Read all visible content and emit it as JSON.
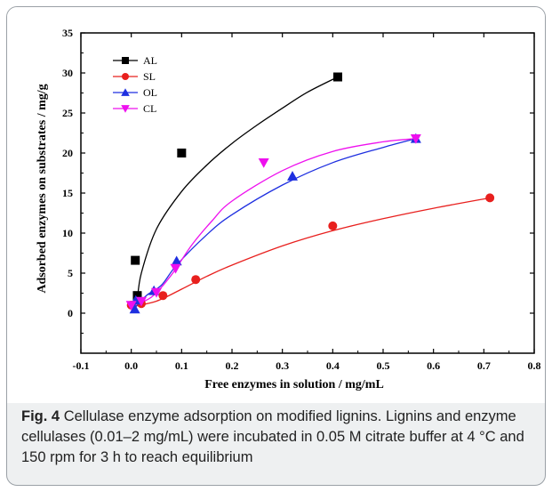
{
  "caption": {
    "label": "Fig. 4",
    "text": "Cellulase enzyme adsorption on modified lignins. Lignins and enzyme cellulases (0.01–2 mg/mL) were incubated in 0.05 M citrate buffer at 4 °C and 150 rpm for 3 h to reach equilibrium"
  },
  "chart_data": {
    "type": "scatter",
    "xlabel": "Free enzymes in solution / mg/mL",
    "ylabel": "Adsorbed enzymes on substrates / mg/g",
    "xlim": [
      -0.1,
      0.8
    ],
    "ylim": [
      -5,
      35
    ],
    "xticks": [
      "-0.1",
      "0.0",
      "0.1",
      "0.2",
      "0.3",
      "0.4",
      "0.5",
      "0.6",
      "0.7",
      "0.8"
    ],
    "yticks": [
      "0",
      "5",
      "10",
      "15",
      "20",
      "25",
      "30",
      "35"
    ],
    "grid": false,
    "legend_position": "top-left",
    "series": [
      {
        "name": "AL",
        "marker": "square",
        "color": "#000000",
        "points": [
          [
            0.008,
            6.6
          ],
          [
            0.012,
            2.2
          ],
          [
            0.1,
            20.0
          ],
          [
            0.41,
            29.5
          ]
        ],
        "fit": [
          [
            0.012,
            1.6
          ],
          [
            0.02,
            5.0
          ],
          [
            0.05,
            10.5
          ],
          [
            0.1,
            15.2
          ],
          [
            0.15,
            18.5
          ],
          [
            0.2,
            21.2
          ],
          [
            0.25,
            23.5
          ],
          [
            0.3,
            25.6
          ],
          [
            0.35,
            27.6
          ],
          [
            0.41,
            29.5
          ]
        ]
      },
      {
        "name": "SL",
        "marker": "circle",
        "color": "#e8201e",
        "points": [
          [
            0.0,
            1.0
          ],
          [
            0.02,
            1.2
          ],
          [
            0.063,
            2.2
          ],
          [
            0.128,
            4.2
          ],
          [
            0.4,
            10.9
          ],
          [
            0.712,
            14.4
          ]
        ],
        "fit": [
          [
            0.0,
            0.8
          ],
          [
            0.05,
            1.5
          ],
          [
            0.1,
            3.0
          ],
          [
            0.15,
            4.6
          ],
          [
            0.2,
            6.0
          ],
          [
            0.3,
            8.4
          ],
          [
            0.4,
            10.3
          ],
          [
            0.5,
            11.8
          ],
          [
            0.6,
            13.1
          ],
          [
            0.712,
            14.4
          ]
        ]
      },
      {
        "name": "OL",
        "marker": "triangle-up",
        "color": "#1e2fe0",
        "points": [
          [
            0.007,
            0.5
          ],
          [
            0.009,
            1.6
          ],
          [
            0.045,
            2.8
          ],
          [
            0.09,
            6.5
          ],
          [
            0.32,
            17.1
          ],
          [
            0.565,
            21.8
          ]
        ],
        "fit": [
          [
            0.005,
            0.5
          ],
          [
            0.03,
            2.2
          ],
          [
            0.06,
            3.5
          ],
          [
            0.09,
            6.0
          ],
          [
            0.15,
            9.8
          ],
          [
            0.2,
            12.3
          ],
          [
            0.3,
            16.0
          ],
          [
            0.4,
            18.8
          ],
          [
            0.5,
            20.7
          ],
          [
            0.565,
            21.8
          ]
        ]
      },
      {
        "name": "CL",
        "marker": "triangle-down",
        "color": "#ee10ee",
        "points": [
          [
            0.0,
            1.0
          ],
          [
            0.02,
            1.5
          ],
          [
            0.05,
            2.6
          ],
          [
            0.088,
            5.6
          ],
          [
            0.263,
            18.8
          ],
          [
            0.565,
            21.8
          ]
        ],
        "fit": [
          [
            0.0,
            0.9
          ],
          [
            0.04,
            2.0
          ],
          [
            0.08,
            4.8
          ],
          [
            0.12,
            8.5
          ],
          [
            0.16,
            11.5
          ],
          [
            0.2,
            14.0
          ],
          [
            0.3,
            17.8
          ],
          [
            0.4,
            20.2
          ],
          [
            0.5,
            21.4
          ],
          [
            0.565,
            21.8
          ]
        ]
      }
    ]
  }
}
